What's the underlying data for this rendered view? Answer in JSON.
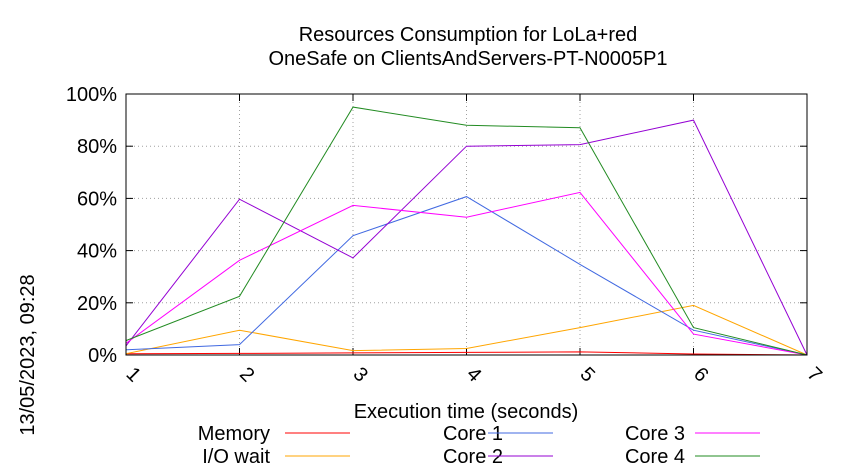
{
  "chart_data": {
    "type": "line",
    "title": "Resources Consumption for LoLa+red",
    "subtitle": "OneSafe on ClientsAndServers-PT-N0005P1",
    "xlabel": "Execution time (seconds)",
    "ylabel": "",
    "side_label": "13/05/2023, 09:28",
    "xlim": [
      1,
      7
    ],
    "ylim": [
      0,
      100
    ],
    "x_ticks": [
      1,
      2,
      3,
      4,
      5,
      6,
      7
    ],
    "y_ticks": [
      0,
      20,
      40,
      60,
      80,
      100
    ],
    "y_tick_labels": [
      "0%",
      "20%",
      "40%",
      "60%",
      "80%",
      "100%"
    ],
    "grid": true,
    "legend_position": "bottom",
    "series": [
      {
        "name": "Memory",
        "color": "#ff0000",
        "x": [
          1,
          2,
          3,
          4,
          5,
          6,
          7
        ],
        "y": [
          0.5,
          0.6,
          0.8,
          1.0,
          1.2,
          0.4,
          0
        ]
      },
      {
        "name": "I/O wait",
        "color": "#ffa500",
        "x": [
          1,
          2,
          3,
          4,
          5,
          6,
          7
        ],
        "y": [
          0.5,
          9.5,
          1.7,
          2.5,
          10.5,
          19,
          0
        ]
      },
      {
        "name": "Core 1",
        "color": "#4169e1",
        "x": [
          1,
          2,
          3,
          4,
          5,
          6,
          7
        ],
        "y": [
          2,
          4,
          45.7,
          60.7,
          34.7,
          9.5,
          0
        ]
      },
      {
        "name": "Core 2",
        "color": "#9400d3",
        "x": [
          1,
          2,
          3,
          4,
          5,
          6,
          7
        ],
        "y": [
          3.5,
          59.7,
          37.2,
          80,
          80.6,
          90,
          0
        ]
      },
      {
        "name": "Core 3",
        "color": "#ff00ff",
        "x": [
          1,
          2,
          3,
          4,
          5,
          6,
          7
        ],
        "y": [
          4.5,
          36.3,
          57.3,
          52.8,
          62.3,
          8,
          0
        ]
      },
      {
        "name": "Core 4",
        "color": "#228b22",
        "x": [
          1,
          2,
          3,
          4,
          5,
          6,
          7
        ],
        "y": [
          5.5,
          22.5,
          95,
          88,
          87.1,
          10.5,
          0
        ]
      }
    ]
  }
}
